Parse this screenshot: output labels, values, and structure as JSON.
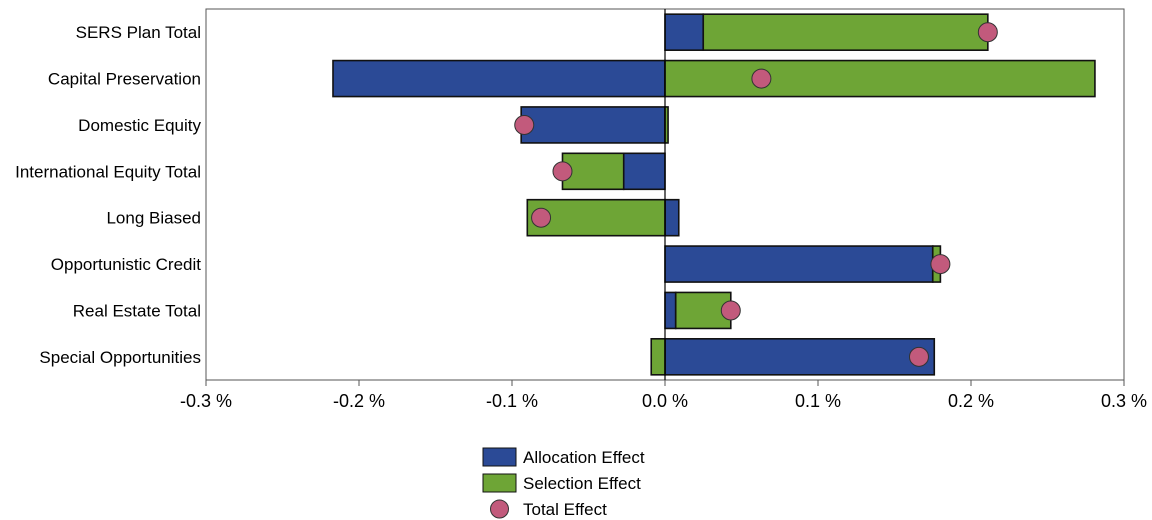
{
  "chart_data": {
    "type": "bar",
    "orientation": "horizontal",
    "stacked": "diverging",
    "title": "",
    "xlabel": "",
    "ylabel": "",
    "xlim": [
      -0.3,
      0.3
    ],
    "x_ticks": [
      {
        "value": -0.3,
        "label": "-0.3 %"
      },
      {
        "value": -0.2,
        "label": "-0.2 %"
      },
      {
        "value": -0.1,
        "label": "-0.1 %"
      },
      {
        "value": 0.0,
        "label": "0.0 %"
      },
      {
        "value": 0.1,
        "label": "0.1 %"
      },
      {
        "value": 0.2,
        "label": "0.2 %"
      },
      {
        "value": 0.3,
        "label": "0.3 %"
      }
    ],
    "categories": [
      "SERS Plan Total",
      "Capital Preservation",
      "Domestic Equity",
      "International Equity Total",
      "Long Biased",
      "Opportunistic Credit",
      "Real Estate Total",
      "Special Opportunities"
    ],
    "series": [
      {
        "name": "Allocation Effect",
        "kind": "bar",
        "color": "#2b4a96",
        "values": [
          0.025,
          -0.217,
          -0.094,
          -0.027,
          0.009,
          0.175,
          0.007,
          0.176
        ]
      },
      {
        "name": "Selection Effect",
        "kind": "bar",
        "color": "#6ea536",
        "values": [
          0.186,
          0.281,
          0.002,
          -0.04,
          -0.09,
          0.005,
          0.036,
          -0.009
        ]
      },
      {
        "name": "Total Effect",
        "kind": "marker",
        "color": "#c25a7c",
        "values": [
          0.211,
          0.063,
          -0.092,
          -0.067,
          -0.081,
          0.18,
          0.043,
          0.166
        ]
      }
    ],
    "grid": false,
    "legend": {
      "position": "bottom-center"
    }
  }
}
